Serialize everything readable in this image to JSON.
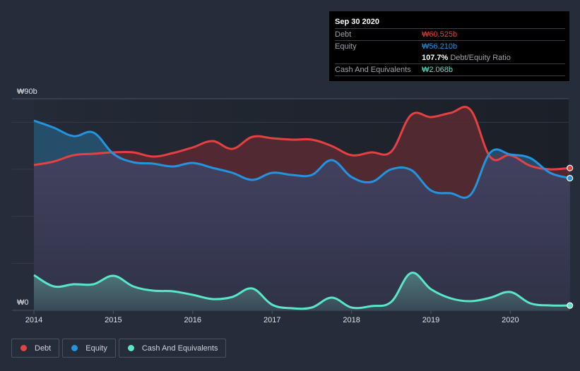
{
  "tooltip": {
    "date": "Sep 30 2020",
    "rows": [
      {
        "label": "Debt",
        "value": "₩60.525b",
        "color": "#e64141"
      },
      {
        "label": "Equity",
        "value": "₩56.210b",
        "color": "#2394df"
      },
      {
        "label": "Cash And Equivalents",
        "value": "₩2.068b",
        "color": "#58e7c9"
      }
    ],
    "ratio_value": "107.7%",
    "ratio_label": "Debt/Equity Ratio"
  },
  "legend": [
    {
      "label": "Debt",
      "color": "#e64141"
    },
    {
      "label": "Equity",
      "color": "#2394df"
    },
    {
      "label": "Cash And Equivalents",
      "color": "#58e7c9"
    }
  ],
  "chart_data": {
    "type": "area",
    "title": "",
    "xlabel": "",
    "ylabel": "",
    "x_tick_labels": [
      "2014",
      "2015",
      "2016",
      "2017",
      "2018",
      "2019",
      "2020"
    ],
    "y_tick_labels": [
      "₩0",
      "₩90b"
    ],
    "xlim": [
      2014.0,
      2020.75
    ],
    "ylim": [
      0,
      90
    ],
    "y_gridlines": [
      20,
      40,
      60,
      80,
      90
    ],
    "grid": true,
    "legend_position": "bottom-left",
    "x": [
      2014.0,
      2014.25,
      2014.5,
      2014.75,
      2015.0,
      2015.25,
      2015.5,
      2015.75,
      2016.0,
      2016.25,
      2016.5,
      2016.75,
      2017.0,
      2017.25,
      2017.5,
      2017.75,
      2018.0,
      2018.25,
      2018.5,
      2018.75,
      2019.0,
      2019.25,
      2019.5,
      2019.75,
      2020.0,
      2020.25,
      2020.5,
      2020.75
    ],
    "series": [
      {
        "name": "Debt",
        "color": "#e64141",
        "values": [
          61.8,
          63.3,
          66.0,
          66.6,
          67.2,
          67.2,
          65.4,
          66.9,
          69.3,
          72.0,
          68.7,
          73.8,
          73.2,
          72.6,
          72.6,
          69.9,
          66.0,
          67.2,
          67.5,
          83.1,
          82.2,
          84.0,
          85.2,
          65.1,
          66.0,
          61.5,
          60.0,
          60.525
        ]
      },
      {
        "name": "Equity",
        "color": "#2394df",
        "values": [
          80.7,
          77.7,
          74.1,
          75.6,
          66.6,
          63.0,
          62.4,
          61.2,
          62.7,
          60.6,
          58.5,
          55.5,
          58.5,
          57.6,
          57.6,
          63.9,
          56.7,
          54.6,
          60.0,
          59.7,
          51.0,
          49.8,
          49.2,
          67.2,
          66.3,
          64.8,
          58.5,
          56.21
        ]
      },
      {
        "name": "Cash And Equivalents",
        "color": "#58e7c9",
        "values": [
          15.0,
          10.2,
          11.1,
          11.1,
          14.7,
          10.2,
          8.4,
          8.1,
          6.6,
          4.8,
          5.7,
          9.3,
          2.4,
          0.9,
          1.2,
          5.4,
          1.2,
          1.8,
          3.6,
          15.9,
          9.0,
          5.1,
          3.9,
          5.4,
          7.8,
          3.0,
          2.1,
          2.068
        ]
      }
    ]
  }
}
